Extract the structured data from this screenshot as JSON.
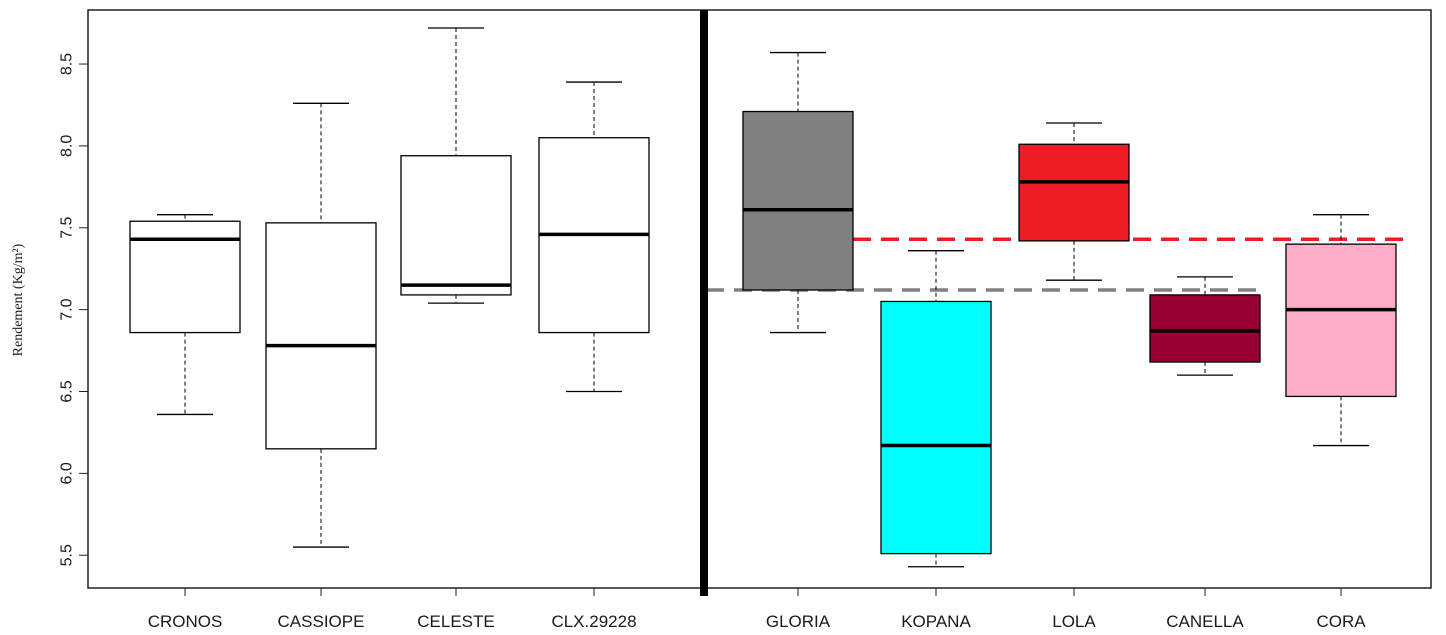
{
  "chart_data": {
    "type": "boxplot",
    "ylabel": "Rendement (Kg/m²)",
    "ylim": [
      5.3,
      8.83
    ],
    "yticks": [
      5.5,
      6.0,
      6.5,
      7.0,
      7.5,
      8.0,
      8.5
    ],
    "ytick_labels": [
      "5.5",
      "6.0",
      "6.5",
      "7.0",
      "7.5",
      "8.0",
      "8.5"
    ],
    "grid": false,
    "divider_after": "CLX.29228",
    "groups": [
      {
        "name": "CRONOS",
        "whisker_low": 6.36,
        "q1": 6.86,
        "median": 7.43,
        "q3": 7.54,
        "whisker_high": 7.58,
        "color": "#ffffff"
      },
      {
        "name": "CASSIOPE",
        "whisker_low": 5.55,
        "q1": 6.15,
        "median": 6.78,
        "q3": 7.53,
        "whisker_high": 8.26,
        "color": "#ffffff"
      },
      {
        "name": "CELESTE",
        "whisker_low": 7.04,
        "q1": 7.09,
        "median": 7.15,
        "q3": 7.94,
        "whisker_high": 8.72,
        "color": "#ffffff"
      },
      {
        "name": "CLX.29228",
        "whisker_low": 6.5,
        "q1": 6.86,
        "median": 7.46,
        "q3": 8.05,
        "whisker_high": 8.39,
        "color": "#ffffff"
      },
      {
        "name": "GLORIA",
        "whisker_low": 6.86,
        "q1": 7.12,
        "median": 7.61,
        "q3": 8.21,
        "whisker_high": 8.57,
        "color": "#808080"
      },
      {
        "name": "KOPANA",
        "whisker_low": 5.43,
        "q1": 5.51,
        "median": 6.17,
        "q3": 7.05,
        "whisker_high": 7.36,
        "color": "#00ffff"
      },
      {
        "name": "LOLA",
        "whisker_low": 7.18,
        "q1": 7.42,
        "median": 7.78,
        "q3": 8.01,
        "whisker_high": 8.14,
        "color": "#ee1c25"
      },
      {
        "name": "CANELLA",
        "whisker_low": 6.6,
        "q1": 6.68,
        "median": 6.87,
        "q3": 7.09,
        "whisker_high": 7.2,
        "color": "#990033"
      },
      {
        "name": "CORA",
        "whisker_low": 6.17,
        "q1": 6.47,
        "median": 7.0,
        "q3": 7.4,
        "whisker_high": 7.58,
        "color": "#ffaec9"
      }
    ],
    "reference_lines": [
      {
        "value": 7.43,
        "color": "#ee1c25",
        "style": "dashed",
        "from": "GLORIA",
        "to": "CORA"
      },
      {
        "value": 7.12,
        "color": "#808080",
        "style": "dashed",
        "from": "CLX.29228",
        "to": "CANELLA"
      }
    ]
  }
}
